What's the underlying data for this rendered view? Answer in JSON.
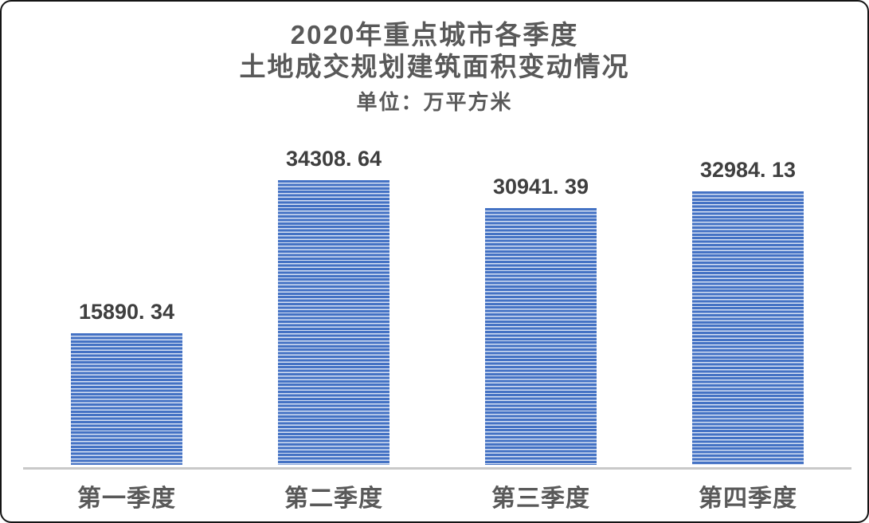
{
  "card": {
    "background_color": "#ffffff",
    "border_color": "#141414"
  },
  "title": {
    "line1": "2020年重点城市各季度",
    "line2": "土地成交规划建筑面积变动情况",
    "unit_label": "单位：万平方米"
  },
  "chart_data": {
    "type": "bar",
    "title": "2020年重点城市各季度土地成交规划建筑面积变动情况",
    "subtitle": "单位：万平方米",
    "unit": "万平方米",
    "categories": [
      "第一季度",
      "第二季度",
      "第三季度",
      "第四季度"
    ],
    "values": [
      15890.34,
      34308.64,
      30941.39,
      32984.13
    ],
    "value_labels": [
      "15890. 34",
      "34308. 64",
      "30941. 39",
      "32984. 13"
    ],
    "ylim": [
      0,
      35000
    ],
    "grid": false,
    "legend": false,
    "data_labels": true,
    "bar_color": "#4472c4",
    "bar_stripe_color": "#d7e1f3",
    "axis_line_color": "#c9c9c9",
    "label_color": "#3f3f3f",
    "category_label_color": "#595959",
    "title_color": "#595959"
  }
}
